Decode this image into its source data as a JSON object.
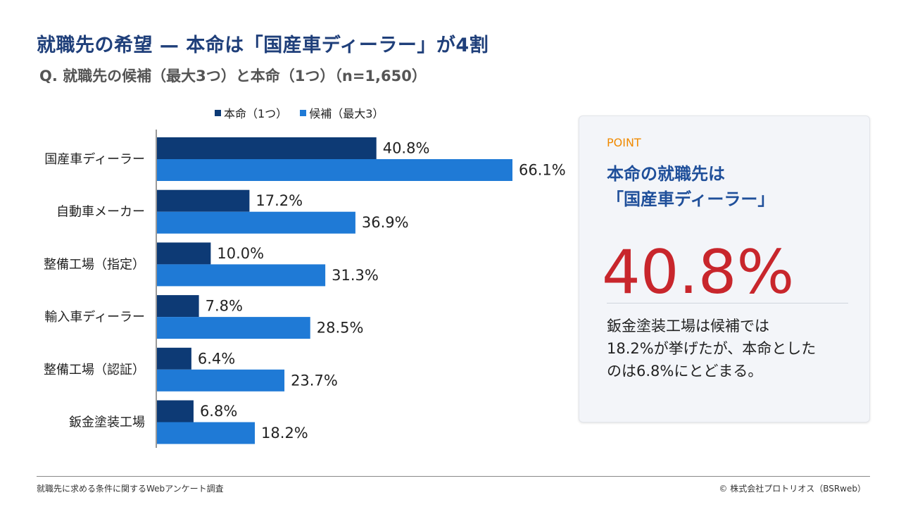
{
  "header": {
    "title": "就職先の希望 — 本命は「国産車ディーラー」が4割",
    "subtitle": "Q. 就職先の候補（最大3つ）と本命（1つ）（n=1,650）"
  },
  "colors": {
    "primary": "#0d3a75",
    "secondary": "#1f7ad6",
    "accent": "#c8262c",
    "point": "#f08a00"
  },
  "chart_data": {
    "type": "bar",
    "orientation": "horizontal",
    "categories": [
      "国産車ディーラー",
      "自動車メーカー",
      "整備工場（指定）",
      "輸入車ディーラー",
      "整備工場（認証）",
      "鈑金塗装工場"
    ],
    "series": [
      {
        "name": "本命（1つ）",
        "values": [
          40.8,
          17.2,
          10.0,
          7.8,
          6.4,
          6.8
        ],
        "labels": [
          "40.8%",
          "17.2%",
          "10.0%",
          "7.8%",
          "6.4%",
          "6.8%"
        ],
        "color": "#0d3a75"
      },
      {
        "name": "候補（最大3）",
        "values": [
          66.1,
          36.9,
          31.3,
          28.5,
          23.7,
          18.2
        ],
        "labels": [
          "66.1%",
          "36.9%",
          "31.3%",
          "28.5%",
          "23.7%",
          "18.2%"
        ],
        "color": "#1f7ad6"
      }
    ],
    "unit": "%",
    "legend": "top",
    "grid": false
  },
  "panel": {
    "tag": "POINT",
    "heading_line1": "本命の就職先は",
    "heading_line2": "「国産車ディーラー」",
    "big_number": "40.8%",
    "body_line1": "鈑金塗装工場は候補では",
    "body_line2": "18.2%が挙げたが、本命とした",
    "body_line3": "のは6.8%にとどまる。"
  },
  "footer": {
    "source": "就職先に求める条件に関するWebアンケート調査",
    "copyright": "©  株式会社プロトリオス（BSRweb）"
  }
}
